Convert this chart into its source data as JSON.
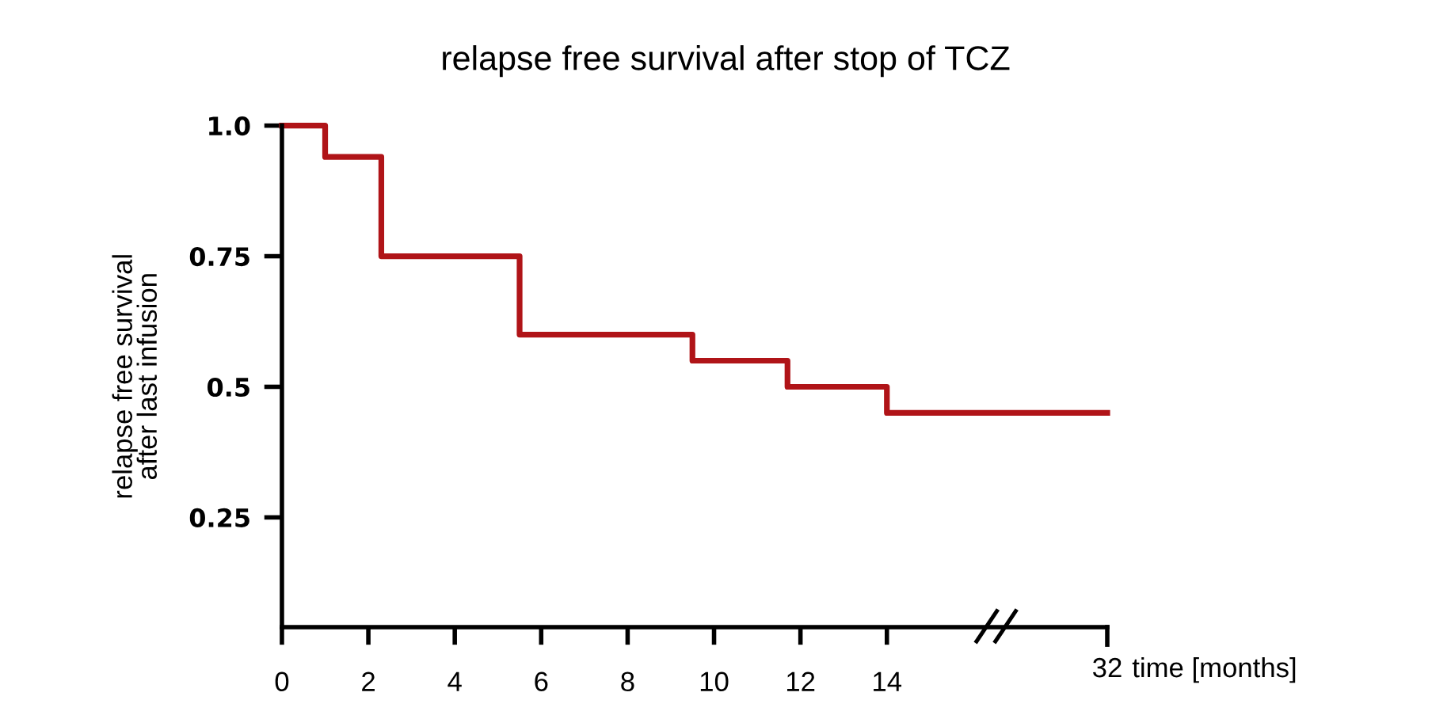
{
  "chart_data": {
    "type": "step",
    "title": "relapse free survival after stop of TCZ",
    "ylabel": "relapse free survival\nafter last infusion",
    "xlabel": "time [months]",
    "x": [
      0,
      1,
      2.3,
      5.5,
      9.5,
      11.7,
      14,
      19.1
    ],
    "series": [
      {
        "color": "#b01418",
        "values": [
          1.0,
          0.94,
          0.75,
          0.6,
          0.55,
          0.5,
          0.45,
          0.45
        ]
      }
    ],
    "xlim": [
      0,
      19.1
    ],
    "xticks": [
      0,
      2,
      4,
      6,
      8,
      10,
      12,
      14
    ],
    "ylim": [
      0.04,
      1.0
    ],
    "yticks": [
      0.25,
      0.5,
      0.75,
      {
        "value": 1,
        "label": "1.0"
      }
    ],
    "annotations": [
      "32"
    ]
  }
}
